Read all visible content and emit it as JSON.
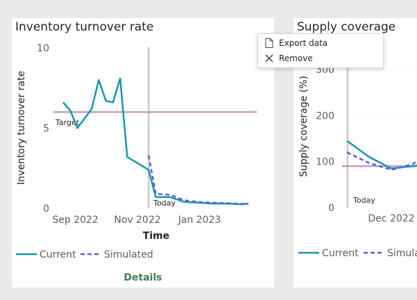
{
  "left_card": {
    "title": "Inventory turnover rate",
    "details_label": "Details",
    "target_label": "Target",
    "today_label": "Today",
    "legend": {
      "current": "Current",
      "simulated": "Simulated"
    }
  },
  "right_card": {
    "title": "Supply coverage",
    "today_label": "Today",
    "legend": {
      "current": "Current",
      "simulated": "Simulated"
    }
  },
  "context_menu": {
    "items": [
      {
        "label": "Export data",
        "icon": "document-icon"
      },
      {
        "label": "Remove",
        "icon": "close-icon"
      }
    ]
  },
  "colors": {
    "current": "#1397ad",
    "simulated": "#5563d4",
    "target": "#c79ac0",
    "today": "#c8c8c8",
    "details": "#3f7d4e"
  },
  "chart_data": [
    {
      "type": "line",
      "title": "Inventory turnover rate",
      "xlabel": "Time",
      "ylabel": "Inventory turnover rate",
      "ylim": [
        0,
        10
      ],
      "yticks": [
        "0",
        "5",
        "10"
      ],
      "xticks": [
        "Sep 2022",
        "Nov 2022",
        "Jan 2023"
      ],
      "x": [
        "2022-08-20",
        "2022-08-27",
        "2022-09-03",
        "2022-09-17",
        "2022-09-24",
        "2022-10-01",
        "2022-10-08",
        "2022-10-15",
        "2022-10-22",
        "2022-11-12",
        "2022-11-19",
        "2022-12-03",
        "2022-12-17",
        "2022-12-31",
        "2023-01-14",
        "2023-01-28",
        "2023-02-11",
        "2023-02-18"
      ],
      "series": [
        {
          "name": "Current",
          "style": "solid",
          "values": [
            6.6,
            6.1,
            5.0,
            6.2,
            8.0,
            6.7,
            6.6,
            8.1,
            3.2,
            2.4,
            0.7,
            0.7,
            0.4,
            0.35,
            0.3,
            0.3,
            0.25,
            0.3
          ]
        },
        {
          "name": "Simulated",
          "style": "dashed",
          "values": [
            null,
            null,
            null,
            null,
            null,
            null,
            null,
            null,
            null,
            3.3,
            0.9,
            0.85,
            0.5,
            0.4,
            0.35,
            0.32,
            0.28,
            0.3
          ]
        }
      ],
      "reference_line": {
        "label": "Target",
        "value": 6.0
      },
      "today_marker": {
        "label": "Today",
        "date": "2022-11-12"
      },
      "legend_position": "bottom-left"
    },
    {
      "type": "line",
      "title": "Supply coverage",
      "ylabel": "Supply coverage (%)",
      "ylim": [
        0,
        300
      ],
      "yticks": [
        "0",
        "100",
        "200",
        "300"
      ],
      "xticks": [
        "Dec 2022"
      ],
      "x": [
        "2022-11-12",
        "2022-11-26",
        "2022-12-10",
        "2022-12-24",
        "2023-01-07"
      ],
      "series": [
        {
          "name": "Current",
          "style": "solid",
          "values": [
            145,
            110,
            85,
            90,
            100
          ]
        },
        {
          "name": "Simulated",
          "style": "dashed",
          "values": [
            120,
            97,
            82,
            95,
            145
          ]
        }
      ],
      "reference_line": {
        "value": 90
      },
      "today_marker": {
        "label": "Today",
        "date": "2022-11-12"
      },
      "legend_position": "bottom-left"
    }
  ]
}
